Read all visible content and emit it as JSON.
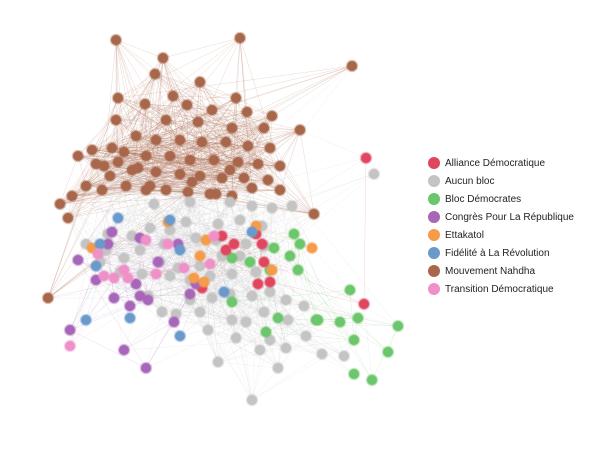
{
  "legend": [
    {
      "label": "Alliance Démocratique",
      "color": "#e0465e"
    },
    {
      "label": "Aucun bloc",
      "color": "#c4c4c4"
    },
    {
      "label": "Bloc Démocrates",
      "color": "#6cc66c"
    },
    {
      "label": "Congrès Pour La République",
      "color": "#a866b8"
    },
    {
      "label": "Ettakatol",
      "color": "#f59c4a"
    },
    {
      "label": "Fidélité à La Révolution",
      "color": "#6a9acb"
    },
    {
      "label": "Mouvement Nahdha",
      "color": "#a8664a"
    },
    {
      "label": "Transition Démocratique",
      "color": "#f090c8"
    }
  ]
}
